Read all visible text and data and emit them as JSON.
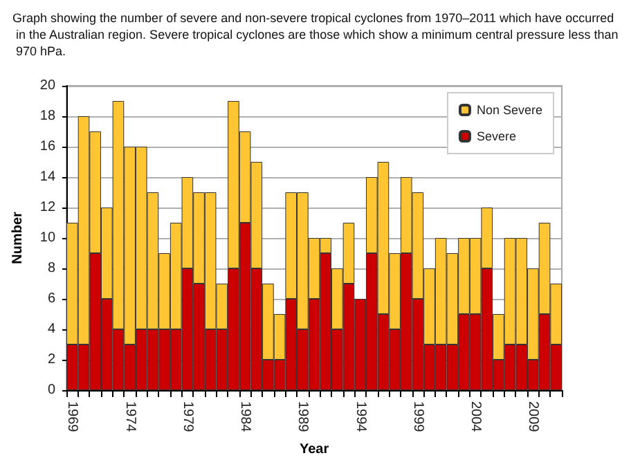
{
  "chart_data": {
    "type": "bar",
    "title": "Graph showing the number of severe and non-severe tropical cyclones from 1970–2011 which have occurred in the Australian region. Severe tropical cyclones are those which show a minimum central pressure less than 970 hPa.",
    "xlabel": "Year",
    "ylabel": "Number",
    "categories": [
      "1969",
      null,
      null,
      null,
      null,
      "1974",
      null,
      null,
      null,
      null,
      "1979",
      null,
      null,
      null,
      null,
      "1984",
      null,
      null,
      null,
      null,
      "1989",
      null,
      null,
      null,
      null,
      "1994",
      null,
      null,
      null,
      null,
      "1999",
      null,
      null,
      null,
      null,
      "2004",
      null,
      null,
      null,
      null,
      "2009",
      null,
      null
    ],
    "stacked": true,
    "series": [
      {
        "name": "Severe",
        "color": "#cc0000",
        "values": [
          3,
          3,
          9,
          6,
          4,
          3,
          4,
          4,
          4,
          4,
          8,
          7,
          4,
          4,
          8,
          11,
          8,
          2,
          2,
          6,
          4,
          6,
          9,
          4,
          7,
          6,
          9,
          5,
          4,
          9,
          6,
          3,
          3,
          3,
          5,
          5,
          8,
          2,
          3,
          3,
          2,
          5,
          3
        ]
      },
      {
        "name": "Non Severe",
        "color": "#ffc533",
        "values": [
          8,
          15,
          8,
          6,
          15,
          13,
          12,
          9,
          5,
          7,
          6,
          6,
          9,
          3,
          11,
          6,
          7,
          5,
          3,
          7,
          9,
          4,
          1,
          4,
          4,
          0,
          5,
          10,
          5,
          5,
          7,
          5,
          7,
          6,
          5,
          5,
          4,
          3,
          7,
          7,
          6,
          6,
          4
        ]
      }
    ],
    "ylim": [
      0,
      20
    ],
    "yticks": [
      0,
      2,
      4,
      6,
      8,
      10,
      12,
      14,
      16,
      18,
      20
    ],
    "grid": "y",
    "legend": "top right"
  }
}
